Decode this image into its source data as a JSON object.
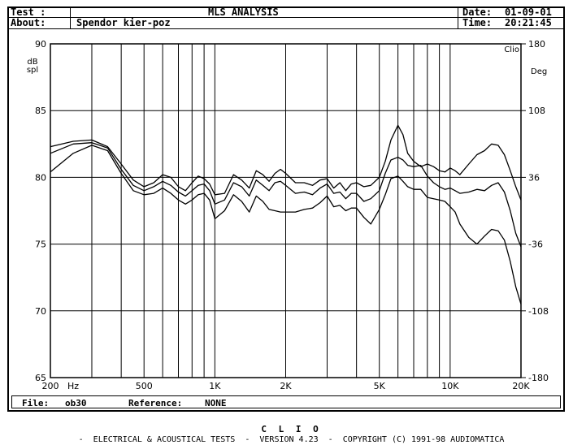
{
  "header": {
    "test_label": "Test :",
    "about_label": "About:",
    "title": "MLS ANALYSIS",
    "about": "Spendor kier-poz",
    "date_label": "Date:",
    "date": "01-09-01",
    "time_label": "Time:",
    "time": "20:21:45"
  },
  "footer": {
    "file_label": "File:",
    "file": "ob30",
    "reference_label": "Reference:",
    "reference": "NONE",
    "brand": "C L I O",
    "tagline": "-  ELECTRICAL & ACOUSTICAL TESTS  -  VERSION 4.23  -  COPYRIGHT (C) 1991-98 AUDIOMATICA"
  },
  "chart_data": {
    "type": "line",
    "title": "MLS ANALYSIS",
    "corner_label": "Clio",
    "x_scale": "log",
    "xlim": [
      200,
      20000
    ],
    "x_ticks": [
      200,
      500,
      1000,
      2000,
      5000,
      10000,
      20000
    ],
    "x_tick_labels": [
      "200",
      "500",
      "1K",
      "2K",
      "5K",
      "10K",
      "20K"
    ],
    "x_unit": "Hz",
    "ylabel": "dB spl",
    "ylim": [
      65,
      90
    ],
    "y_ticks": [
      65,
      70,
      75,
      80,
      85,
      90
    ],
    "y2label": "Deg",
    "y2lim": [
      -180,
      180
    ],
    "y2_ticks": [
      -180,
      -108,
      -36,
      36,
      108,
      180
    ],
    "grid": true,
    "series": [
      {
        "x": [
          200,
          250,
          300,
          350,
          400,
          450,
          500,
          550,
          600,
          650,
          700,
          750,
          800,
          850,
          900,
          950,
          1000,
          1100,
          1200,
          1300,
          1400,
          1500,
          1600,
          1700,
          1800,
          1900,
          2000,
          2200,
          2400,
          2600,
          2800,
          3000,
          3200,
          3400,
          3600,
          3800,
          4000,
          4300,
          4600,
          5000,
          5300,
          5600,
          6000,
          6300,
          6600,
          7000,
          7500,
          8000,
          8500,
          9000,
          9500,
          10000,
          10500,
          11000,
          12000,
          13000,
          14000,
          15000,
          16000,
          17000,
          18000,
          19000,
          20000
        ],
        "y": [
          82.3,
          82.7,
          82.8,
          82.3,
          81.0,
          79.8,
          79.3,
          79.6,
          80.2,
          80.0,
          79.3,
          79.0,
          79.6,
          80.1,
          79.9,
          79.5,
          78.7,
          78.8,
          80.2,
          79.8,
          79.2,
          80.5,
          80.2,
          79.7,
          80.3,
          80.6,
          80.3,
          79.6,
          79.6,
          79.4,
          79.8,
          79.9,
          79.2,
          79.6,
          79.0,
          79.5,
          79.6,
          79.3,
          79.4,
          80.0,
          81.2,
          82.8,
          83.9,
          83.2,
          81.8,
          81.2,
          80.8,
          81.0,
          80.8,
          80.5,
          80.4,
          80.7,
          80.5,
          80.2,
          81.0,
          81.7,
          82.0,
          82.5,
          82.4,
          81.7,
          80.5,
          79.3,
          78.3
        ]
      },
      {
        "x": [
          200,
          250,
          300,
          350,
          400,
          450,
          500,
          550,
          600,
          650,
          700,
          750,
          800,
          850,
          900,
          950,
          1000,
          1100,
          1200,
          1300,
          1400,
          1500,
          1600,
          1700,
          1800,
          1900,
          2000,
          2200,
          2400,
          2600,
          2800,
          3000,
          3200,
          3400,
          3600,
          3800,
          4000,
          4300,
          4600,
          5000,
          5300,
          5600,
          6000,
          6300,
          6600,
          7000,
          7500,
          8000,
          8500,
          9000,
          9500,
          10000,
          10500,
          11000,
          12000,
          13000,
          14000,
          15000,
          16000,
          17000,
          18000,
          19000,
          20000
        ],
        "y": [
          81.8,
          82.5,
          82.6,
          82.2,
          80.6,
          79.4,
          79.0,
          79.3,
          79.7,
          79.4,
          78.9,
          78.6,
          79.0,
          79.4,
          79.5,
          79.0,
          78.0,
          78.3,
          79.6,
          79.3,
          78.6,
          79.8,
          79.4,
          79.0,
          79.6,
          79.7,
          79.4,
          78.8,
          78.9,
          78.7,
          79.2,
          79.5,
          78.8,
          78.9,
          78.4,
          78.8,
          78.8,
          78.2,
          78.4,
          79.0,
          80.3,
          81.3,
          81.5,
          81.3,
          80.9,
          80.8,
          80.9,
          80.1,
          79.6,
          79.3,
          79.1,
          79.2,
          79.0,
          78.8,
          78.9,
          79.1,
          79.0,
          79.4,
          79.6,
          78.9,
          77.5,
          75.8,
          74.8
        ]
      },
      {
        "x": [
          200,
          250,
          300,
          350,
          400,
          450,
          500,
          550,
          600,
          650,
          700,
          750,
          800,
          850,
          900,
          950,
          1000,
          1100,
          1200,
          1300,
          1400,
          1500,
          1600,
          1700,
          1800,
          1900,
          2000,
          2200,
          2400,
          2600,
          2800,
          3000,
          3200,
          3400,
          3600,
          3800,
          4000,
          4300,
          4600,
          5000,
          5300,
          5600,
          6000,
          6300,
          6600,
          7000,
          7500,
          8000,
          8500,
          9000,
          9500,
          10000,
          10500,
          11000,
          12000,
          13000,
          14000,
          15000,
          16000,
          17000,
          18000,
          19000,
          20000
        ],
        "y": [
          80.4,
          81.8,
          82.4,
          82.0,
          80.3,
          79.0,
          78.7,
          78.8,
          79.2,
          78.8,
          78.3,
          78.0,
          78.3,
          78.7,
          78.8,
          78.3,
          76.9,
          77.5,
          78.7,
          78.2,
          77.4,
          78.6,
          78.2,
          77.6,
          77.5,
          77.4,
          77.4,
          77.4,
          77.6,
          77.7,
          78.1,
          78.6,
          77.8,
          77.9,
          77.5,
          77.7,
          77.7,
          77.0,
          76.5,
          77.6,
          78.7,
          79.9,
          80.1,
          79.7,
          79.3,
          79.1,
          79.1,
          78.5,
          78.4,
          78.3,
          78.2,
          77.8,
          77.4,
          76.5,
          75.5,
          75.0,
          75.6,
          76.1,
          76.0,
          75.3,
          73.7,
          71.8,
          70.5
        ]
      }
    ]
  }
}
